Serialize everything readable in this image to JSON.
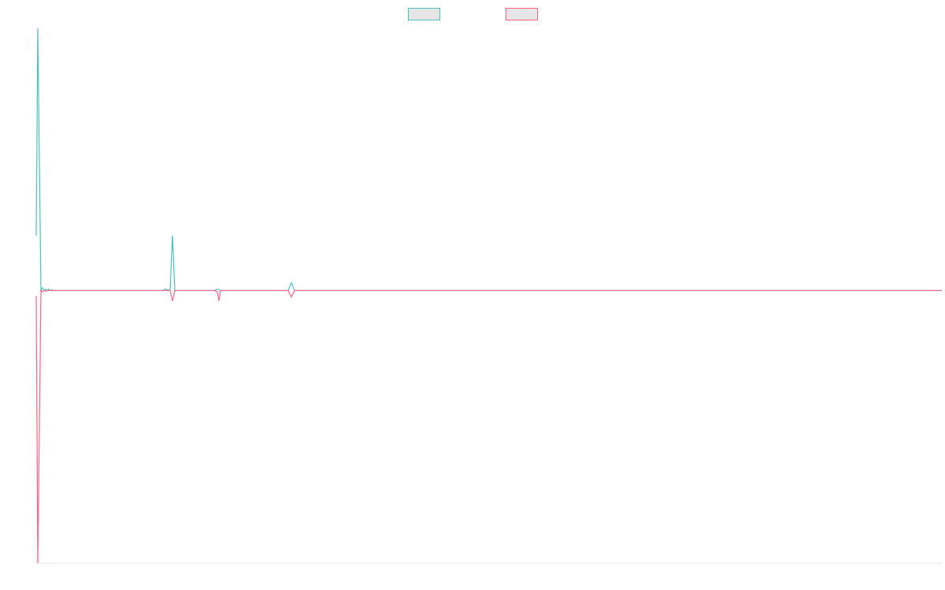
{
  "chart_data": {
    "type": "line",
    "x": [
      0,
      1,
      3,
      4,
      5,
      6,
      7,
      8,
      9,
      10,
      11,
      80,
      82,
      85,
      86.5,
      88,
      113,
      115,
      116,
      117,
      160,
      162,
      164,
      575
    ],
    "xlim": [
      0,
      575
    ],
    "ylim": [
      -104,
      100
    ],
    "series": [
      {
        "color": "#4bc0c0",
        "values": [
          21,
          100,
          0,
          1,
          0,
          0.5,
          0,
          0.5,
          0,
          0.3,
          0,
          0,
          0.5,
          0,
          21,
          0,
          0,
          0.5,
          0.3,
          0,
          0,
          3,
          0,
          0
        ]
      },
      {
        "color": "#ff6384",
        "values": [
          -2,
          -104,
          0,
          -0.5,
          0,
          -0.3,
          0,
          0,
          0,
          0,
          0,
          0,
          0,
          0,
          -4,
          0,
          0,
          -0.5,
          -4,
          0,
          0,
          -2.5,
          0,
          0
        ]
      }
    ],
    "legend": "top"
  }
}
